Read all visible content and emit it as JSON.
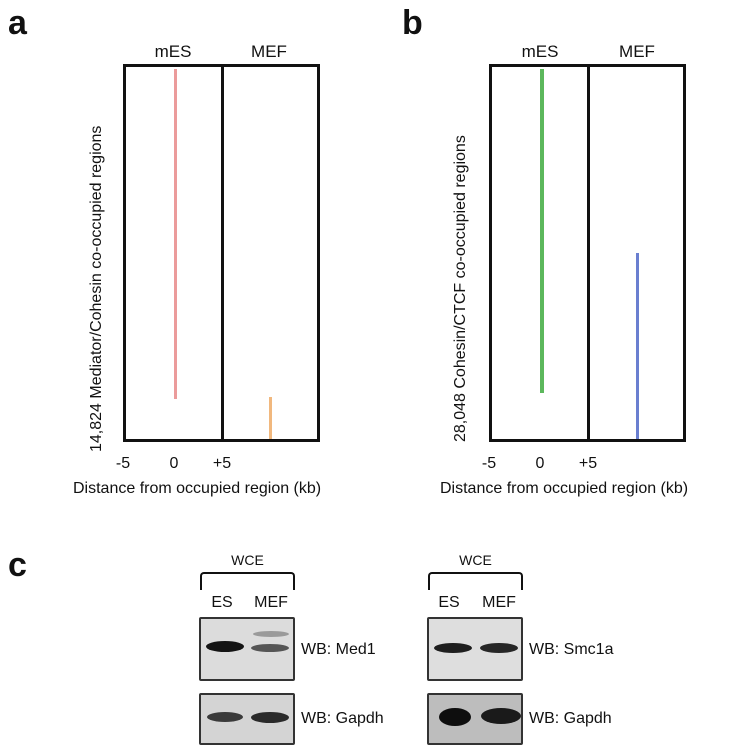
{
  "panel_a": {
    "letter": "a",
    "col_left": "mES",
    "col_right": "MEF",
    "ylabel": "14,824 Mediator/Cohesin co-occupied regions",
    "ticks": [
      "-5",
      "0",
      "+5"
    ],
    "xlabel": "Distance from occupied region (kb)",
    "colors": {
      "mes_signal": "#e88a8a",
      "mef_signal": "#f0b070"
    }
  },
  "panel_b": {
    "letter": "b",
    "col_left": "mES",
    "col_right": "MEF",
    "ylabel": "28,048 Cohesin/CTCF co-occupied regions",
    "ticks": [
      "-5",
      "0",
      "+5"
    ],
    "xlabel": "Distance from occupied region (kb)",
    "colors": {
      "mes_signal": "#5cb85c",
      "mef_signal": "#6a7fd0"
    }
  },
  "panel_c": {
    "letter": "c",
    "left": {
      "group": "WCE",
      "lanes": [
        "ES",
        "MEF"
      ],
      "blots": [
        {
          "label": "WB: Med1"
        },
        {
          "label": "WB: Gapdh"
        }
      ]
    },
    "right": {
      "group": "WCE",
      "lanes": [
        "ES",
        "MEF"
      ],
      "blots": [
        {
          "label": "WB: Smc1a"
        },
        {
          "label": "WB: Gapdh"
        }
      ]
    }
  }
}
